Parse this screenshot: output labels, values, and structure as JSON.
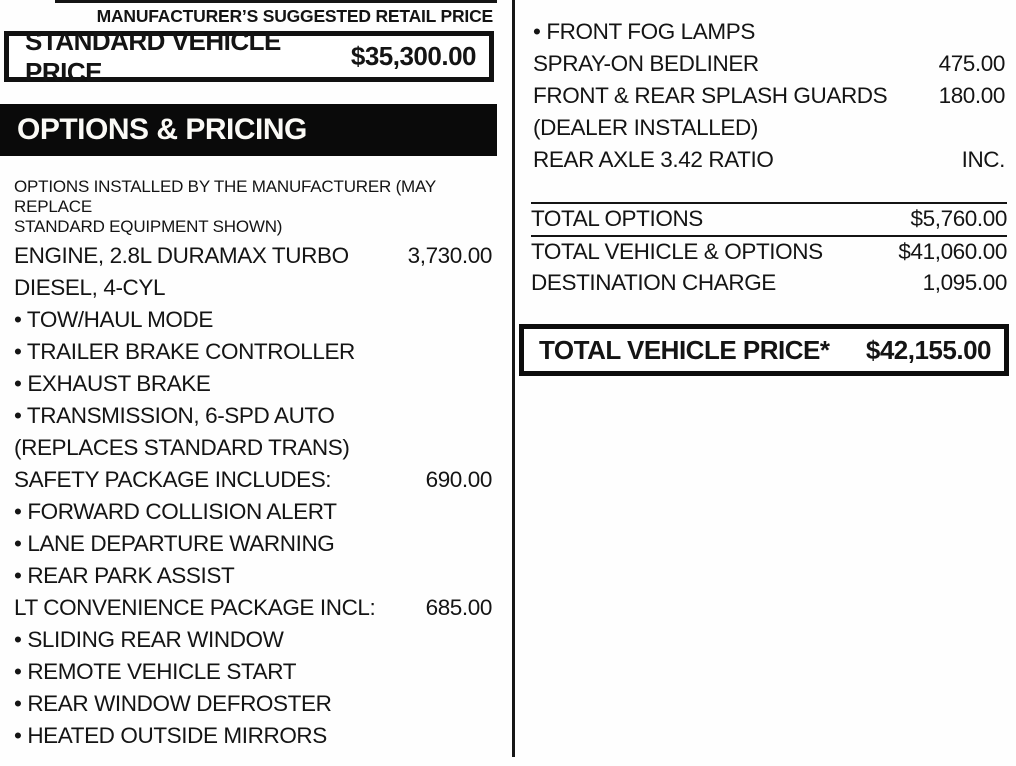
{
  "header": {
    "msrp_label": "MANUFACTURER’S SUGGESTED RETAIL PRICE",
    "standard_vehicle_price": {
      "label": "STANDARD VEHICLE PRICE",
      "value": "$35,300.00"
    }
  },
  "options_section": {
    "title": "OPTIONS & PRICING",
    "note_line1": "OPTIONS INSTALLED BY THE MANUFACTURER (MAY REPLACE",
    "note_line2": "STANDARD EQUIPMENT SHOWN)"
  },
  "left_options": [
    {
      "label": "ENGINE, 2.8L DURAMAX TURBO",
      "price": "3,730.00"
    },
    {
      "label": "DIESEL, 4-CYL",
      "price": ""
    },
    {
      "label": "• TOW/HAUL MODE",
      "price": ""
    },
    {
      "label": "• TRAILER BRAKE CONTROLLER",
      "price": ""
    },
    {
      "label": "• EXHAUST BRAKE",
      "price": ""
    },
    {
      "label": "• TRANSMISSION, 6-SPD AUTO",
      "price": ""
    },
    {
      "label": "(REPLACES STANDARD TRANS)",
      "price": ""
    },
    {
      "label": "SAFETY PACKAGE INCLUDES:",
      "price": "690.00"
    },
    {
      "label": "• FORWARD COLLISION ALERT",
      "price": ""
    },
    {
      "label": "• LANE DEPARTURE WARNING",
      "price": ""
    },
    {
      "label": "• REAR PARK ASSIST",
      "price": ""
    },
    {
      "label": "LT CONVENIENCE PACKAGE INCL:",
      "price": "685.00"
    },
    {
      "label": "• SLIDING REAR WINDOW",
      "price": ""
    },
    {
      "label": "• REMOTE VEHICLE START",
      "price": ""
    },
    {
      "label": "• REAR WINDOW DEFROSTER",
      "price": ""
    },
    {
      "label": "• HEATED OUTSIDE MIRRORS",
      "price": ""
    }
  ],
  "right_options": [
    {
      "label": "• FRONT FOG LAMPS",
      "price": ""
    },
    {
      "label": "SPRAY-ON BEDLINER",
      "price": "475.00"
    },
    {
      "label": "FRONT & REAR SPLASH GUARDS",
      "price": "180.00"
    },
    {
      "label": "(DEALER INSTALLED)",
      "price": ""
    },
    {
      "label": "REAR AXLE 3.42 RATIO",
      "price": "INC."
    }
  ],
  "totals": [
    {
      "label": "TOTAL OPTIONS",
      "price": "$5,760.00"
    },
    {
      "label": "TOTAL VEHICLE & OPTIONS",
      "price": "$41,060.00"
    },
    {
      "label": "DESTINATION CHARGE",
      "price": "1,095.00"
    }
  ],
  "total_vehicle_price": {
    "label": "TOTAL VEHICLE PRICE*",
    "value": "$42,155.00"
  },
  "colors": {
    "ink": "#141414",
    "paper": "#ffffff",
    "bar_bg": "#0a0a0a",
    "bar_text": "#fbfaf6"
  }
}
